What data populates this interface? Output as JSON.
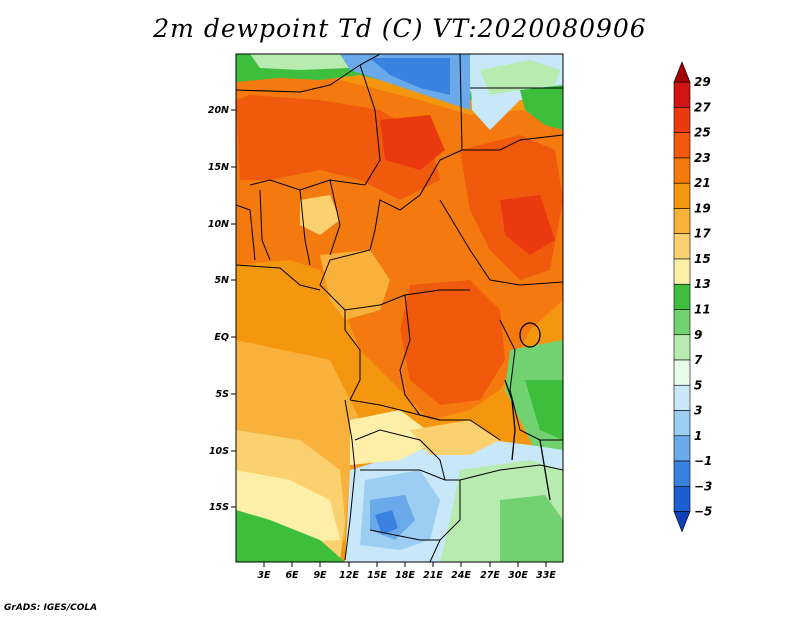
{
  "title": "2m dewpoint Td (C) VT:2020080906",
  "credit": "GrADS: IGES/COLA",
  "lat_labels": [
    "20N",
    "15N",
    "10N",
    "5N",
    "EQ",
    "5S",
    "10S",
    "15S"
  ],
  "lon_labels": [
    "3E",
    "6E",
    "9E",
    "12E",
    "15E",
    "18E",
    "21E",
    "24E",
    "27E",
    "30E",
    "33E"
  ],
  "colorbar": {
    "labels": [
      "29",
      "27",
      "25",
      "23",
      "21",
      "19",
      "17",
      "15",
      "13",
      "11",
      "9",
      "7",
      "5",
      "3",
      "1",
      "-1",
      "-3",
      "-5"
    ],
    "colors_top_to_bottom": [
      "#a50000",
      "#d01515",
      "#ea3a10",
      "#f05a0c",
      "#f47a10",
      "#f5960f",
      "#f8b23c",
      "#fbd170",
      "#fdefa8",
      "#3dbe3d",
      "#72d272",
      "#b8ebb0",
      "#e8fae8",
      "#c8e8fa",
      "#9ccdf2",
      "#6aaaea",
      "#3a82e0",
      "#1c5fd0",
      "#1040b8"
    ]
  }
}
